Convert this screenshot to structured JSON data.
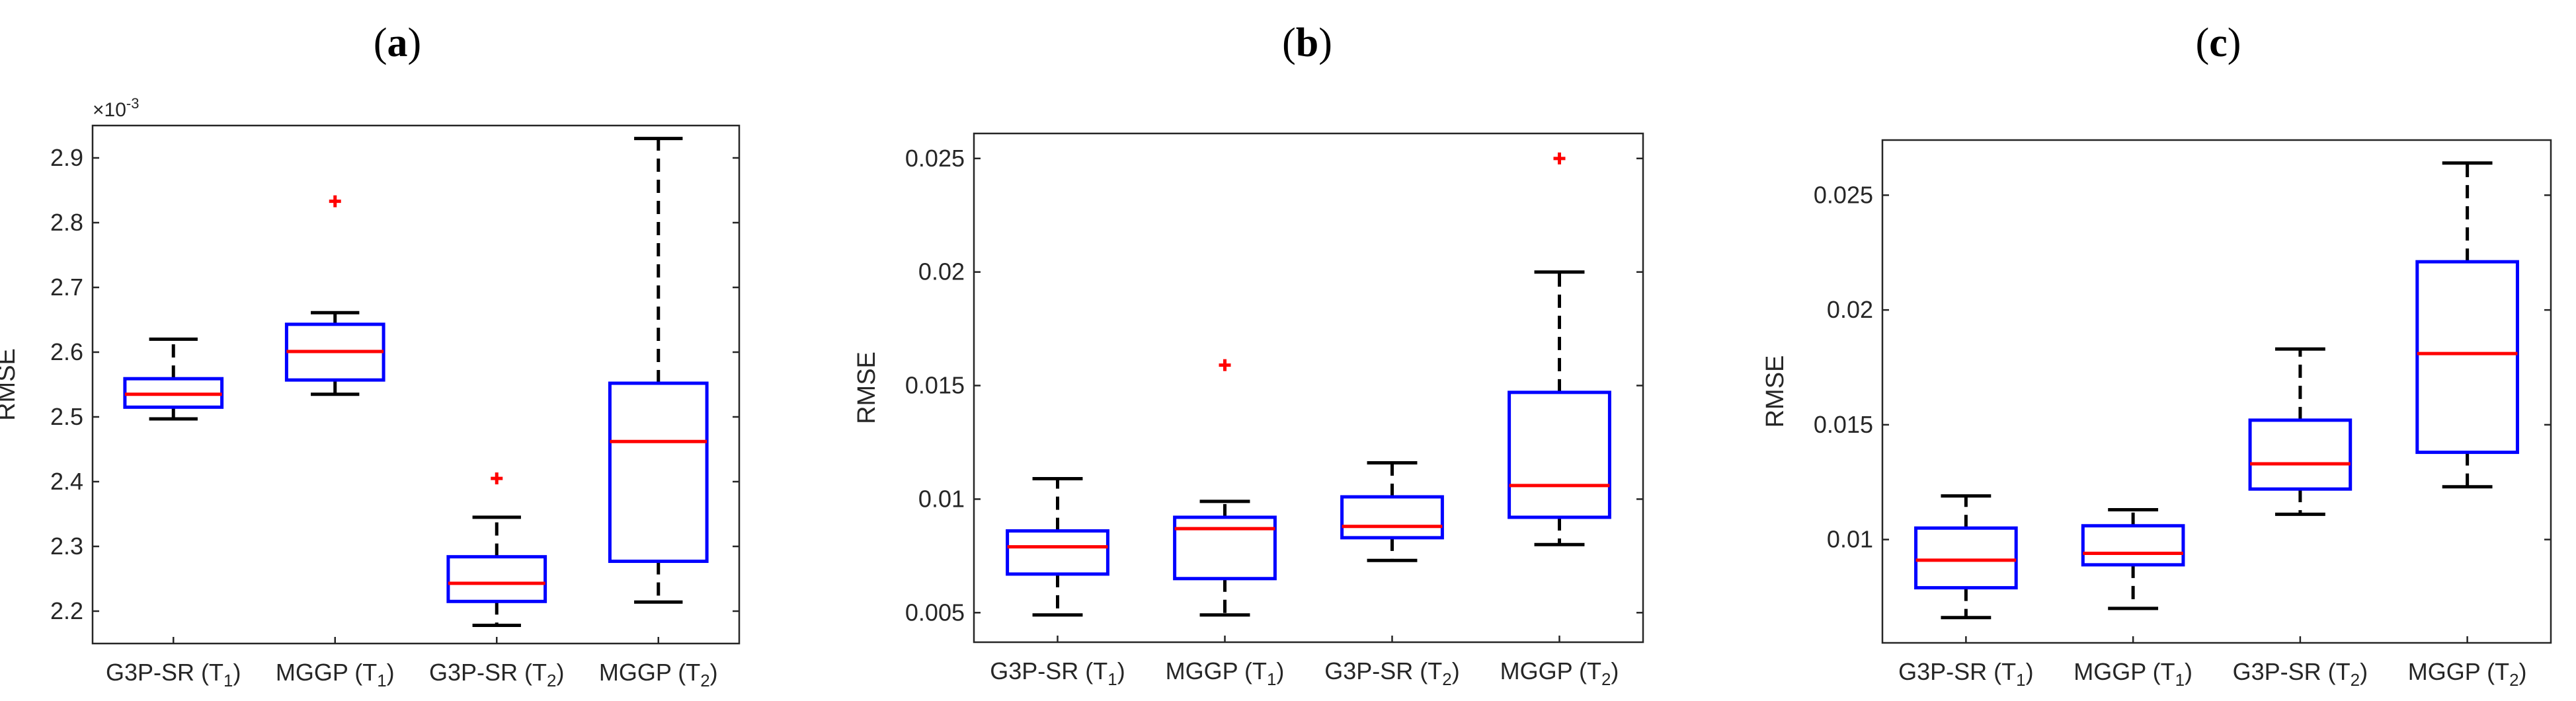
{
  "chart_data": [
    {
      "type": "box",
      "panel_label": "a",
      "ylabel": "RMSE",
      "exponent_label": "×10",
      "exponent_power": "-3",
      "ylim": [
        2.15,
        2.95
      ],
      "yticks": [
        "2.2",
        "2.3",
        "2.4",
        "2.5",
        "2.6",
        "2.7",
        "2.8",
        "2.9"
      ],
      "ytick_values": [
        2.2,
        2.3,
        2.4,
        2.5,
        2.6,
        2.7,
        2.8,
        2.9
      ],
      "categories": [
        {
          "name": "G3P-SR (T",
          "sub": "1",
          "close": ")"
        },
        {
          "name": "MGGP (T",
          "sub": "1",
          "close": ")"
        },
        {
          "name": "G3P-SR (T",
          "sub": "2",
          "close": ")"
        },
        {
          "name": "MGGP (T",
          "sub": "2",
          "close": ")"
        }
      ],
      "boxes": [
        {
          "min": 2.497,
          "q1": 2.515,
          "median": 2.535,
          "q3": 2.559,
          "max": 2.62,
          "outliers": []
        },
        {
          "min": 2.535,
          "q1": 2.557,
          "median": 2.601,
          "q3": 2.643,
          "max": 2.661,
          "outliers": [
            2.833
          ]
        },
        {
          "min": 2.178,
          "q1": 2.215,
          "median": 2.243,
          "q3": 2.284,
          "max": 2.345,
          "outliers": [
            2.405
          ]
        },
        {
          "min": 2.214,
          "q1": 2.277,
          "median": 2.462,
          "q3": 2.552,
          "max": 2.93,
          "outliers": []
        }
      ]
    },
    {
      "type": "box",
      "panel_label": "b",
      "ylabel": "RMSE",
      "ylim": [
        0.0037,
        0.0261
      ],
      "yticks": [
        "0.005",
        "0.01",
        "0.015",
        "0.02",
        "0.025"
      ],
      "ytick_values": [
        0.005,
        0.01,
        0.015,
        0.02,
        0.025
      ],
      "categories": [
        {
          "name": "G3P-SR (T",
          "sub": "1",
          "close": ")"
        },
        {
          "name": "MGGP (T",
          "sub": "1",
          "close": ")"
        },
        {
          "name": "G3P-SR (T",
          "sub": "2",
          "close": ")"
        },
        {
          "name": "MGGP (T",
          "sub": "2",
          "close": ")"
        }
      ],
      "boxes": [
        {
          "min": 0.0049,
          "q1": 0.0067,
          "median": 0.0079,
          "q3": 0.0086,
          "max": 0.0109,
          "outliers": []
        },
        {
          "min": 0.0049,
          "q1": 0.0065,
          "median": 0.0087,
          "q3": 0.0092,
          "max": 0.0099,
          "outliers": [
            0.0159
          ]
        },
        {
          "min": 0.0073,
          "q1": 0.0083,
          "median": 0.0088,
          "q3": 0.0101,
          "max": 0.0116,
          "outliers": []
        },
        {
          "min": 0.008,
          "q1": 0.0092,
          "median": 0.0106,
          "q3": 0.0147,
          "max": 0.02,
          "outliers": [
            0.025
          ]
        }
      ]
    },
    {
      "type": "box",
      "panel_label": "c",
      "ylabel": "RMSE",
      "ylim": [
        0.0055,
        0.0274
      ],
      "yticks": [
        "0.01",
        "0.015",
        "0.02",
        "0.025"
      ],
      "ytick_values": [
        0.01,
        0.015,
        0.02,
        0.025
      ],
      "categories": [
        {
          "name": "G3P-SR (T",
          "sub": "1",
          "close": ")"
        },
        {
          "name": "MGGP (T",
          "sub": "1",
          "close": ")"
        },
        {
          "name": "G3P-SR (T",
          "sub": "2",
          "close": ")"
        },
        {
          "name": "MGGP (T",
          "sub": "2",
          "close": ")"
        }
      ],
      "boxes": [
        {
          "min": 0.0066,
          "q1": 0.0079,
          "median": 0.0091,
          "q3": 0.0105,
          "max": 0.0119,
          "outliers": []
        },
        {
          "min": 0.007,
          "q1": 0.0089,
          "median": 0.0094,
          "q3": 0.0106,
          "max": 0.0113,
          "outliers": []
        },
        {
          "min": 0.0111,
          "q1": 0.0122,
          "median": 0.0133,
          "q3": 0.0152,
          "max": 0.0183,
          "outliers": []
        },
        {
          "min": 0.0123,
          "q1": 0.0138,
          "median": 0.0181,
          "q3": 0.0221,
          "max": 0.0264,
          "outliers": []
        }
      ]
    }
  ],
  "colors": {
    "box": "#0000ff",
    "median": "#ff0000",
    "whisker": "#000000",
    "outlier": "#ff0000",
    "axis": "#262626"
  }
}
